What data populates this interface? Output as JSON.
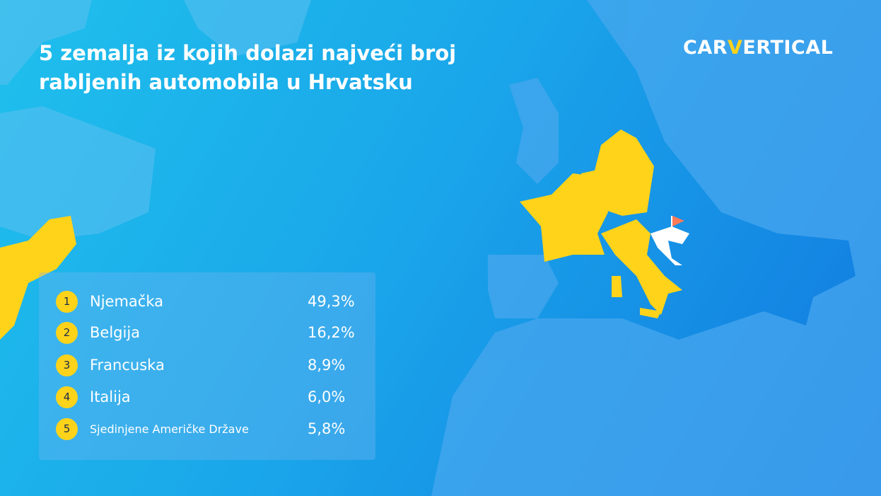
{
  "header": {
    "title_lines": [
      "5 zemalja iz kojih dolazi najveći broj",
      "rabljenih automobila u Hrvatsku"
    ],
    "logo_parts": [
      "CAR",
      "V",
      "ERTICAL"
    ]
  },
  "ranking": {
    "rows": [
      [
        "1",
        "Njemačka",
        "49,3%"
      ],
      [
        "2",
        "Belgija",
        "16,2%"
      ],
      [
        "3",
        "Francuska",
        "8,9%"
      ],
      [
        "4",
        "Italija",
        "6,0%"
      ],
      [
        "5",
        "Sjedinjene Američke Države",
        "5,8%"
      ]
    ]
  }
}
